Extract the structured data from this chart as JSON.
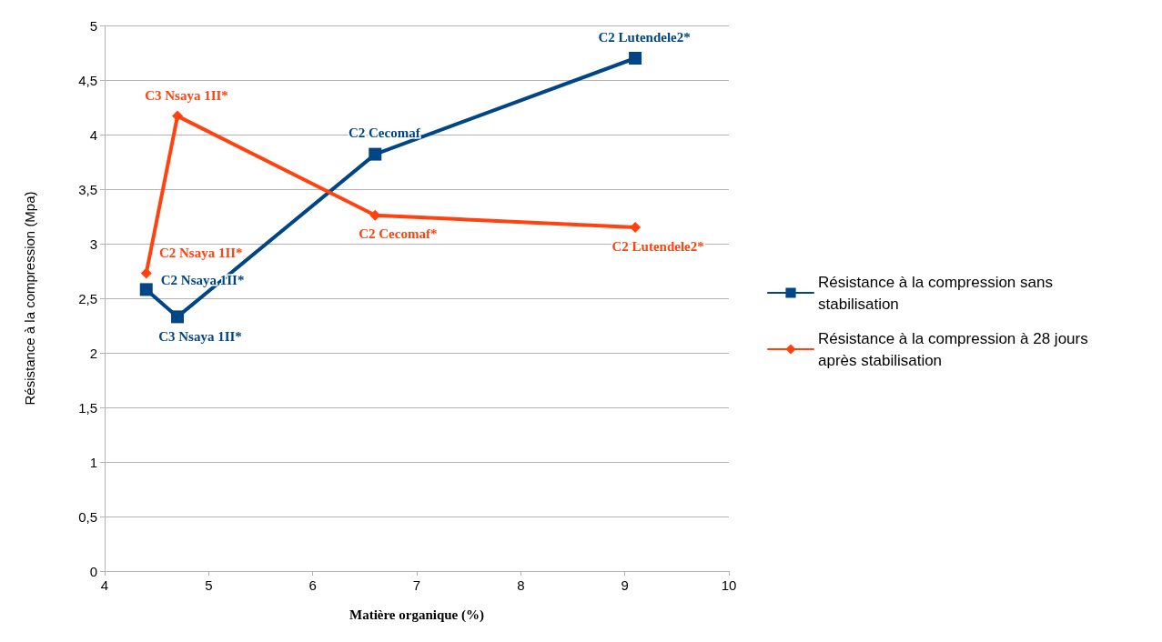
{
  "chart_data": {
    "type": "line",
    "xlabel": "Matière organique (%)",
    "ylabel": "Résistance à la compression (Mpa)",
    "xlim": [
      4,
      10
    ],
    "xticks": [
      4,
      5,
      6,
      7,
      8,
      9,
      10
    ],
    "ylim": [
      0,
      5
    ],
    "yticks": [
      0,
      {
        "value": 0.5,
        "label": "0,5"
      },
      1,
      {
        "value": 1.5,
        "label": "1,5"
      },
      2,
      {
        "value": 2.5,
        "label": "2,5"
      },
      3,
      {
        "value": 3.5,
        "label": "3,5"
      },
      4,
      {
        "value": 4.5,
        "label": "4,5"
      },
      5
    ],
    "grid": "y",
    "legend": "right",
    "series": [
      {
        "name": "Résistance à la compression sans stabilisation",
        "color": "#004586",
        "marker": "square",
        "x": [
          4.4,
          4.7,
          6.6,
          9.1
        ],
        "values": [
          2.58,
          2.33,
          3.82,
          4.7
        ],
        "value_labels": [
          "C2 Nsaya 1II*",
          "C3 Nsaya 1II*",
          "C2 Cecomaf",
          "C2 Lutendele2*"
        ]
      },
      {
        "name": "Résistance à la compression à 28 jours après stabilisation",
        "color": "#ff420e",
        "marker": "diamond",
        "x": [
          4.4,
          4.7,
          6.6,
          9.1
        ],
        "values": [
          2.73,
          4.17,
          3.26,
          3.15
        ],
        "value_labels": [
          "C2 Nsaya 1II*",
          "C3 Nsaya 1II*",
          "C2 Cecomaf*",
          "C2 Lutendele2*"
        ]
      }
    ]
  }
}
